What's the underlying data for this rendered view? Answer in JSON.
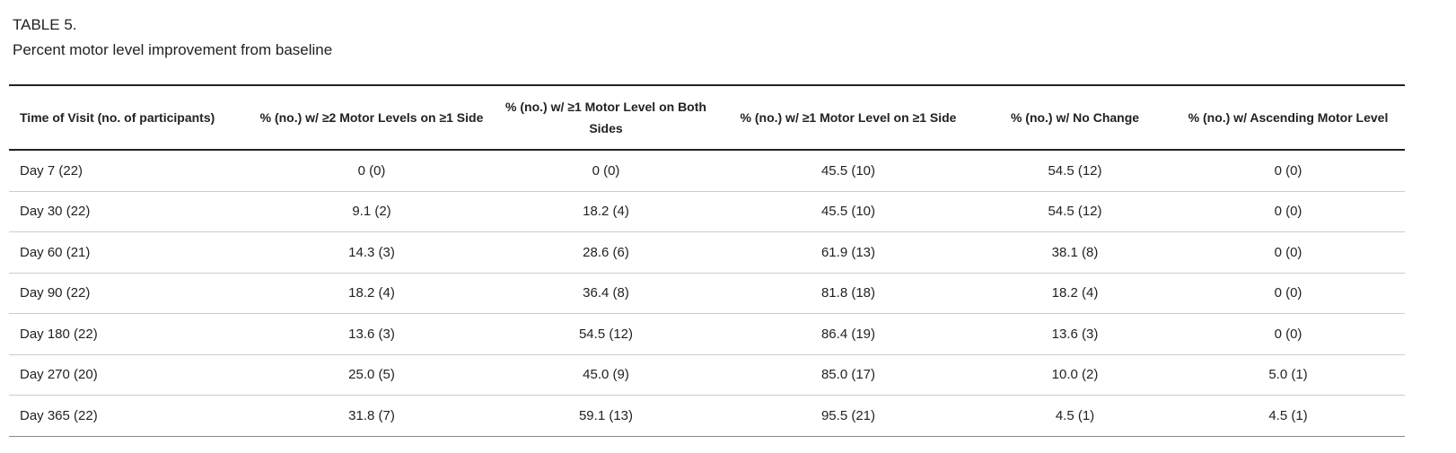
{
  "caption": {
    "label": "TABLE 5.",
    "title": "Percent motor level improvement from baseline"
  },
  "table": {
    "headers": [
      "Time of Visit (no. of participants)",
      "% (no.) w/  ≥2 Motor Levels on ≥1 Side",
      "% (no.) w/  ≥1 Motor Level on Both Sides",
      "% (no.) w/  ≥1 Motor Level on ≥1 Side",
      "% (no.) w/ No Change",
      "% (no.) w/ Ascending Motor Level"
    ],
    "rows": [
      [
        "Day 7 (22)",
        "0 (0)",
        "0 (0)",
        "45.5 (10)",
        "54.5 (12)",
        "0 (0)"
      ],
      [
        "Day 30 (22)",
        "9.1 (2)",
        "18.2 (4)",
        "45.5 (10)",
        "54.5 (12)",
        "0 (0)"
      ],
      [
        "Day 60 (21)",
        "14.3 (3)",
        "28.6 (6)",
        "61.9 (13)",
        "38.1 (8)",
        "0 (0)"
      ],
      [
        "Day 90 (22)",
        "18.2 (4)",
        "36.4 (8)",
        "81.8 (18)",
        "18.2 (4)",
        "0 (0)"
      ],
      [
        "Day 180 (22)",
        "13.6 (3)",
        "54.5 (12)",
        "86.4 (19)",
        "13.6 (3)",
        "0 (0)"
      ],
      [
        "Day 270 (20)",
        "25.0 (5)",
        "45.0 (9)",
        "85.0 (17)",
        "10.0 (2)",
        "5.0 (1)"
      ],
      [
        "Day 365 (22)",
        "31.8 (7)",
        "59.1 (13)",
        "95.5 (21)",
        "4.5 (1)",
        "4.5 (1)"
      ]
    ]
  }
}
